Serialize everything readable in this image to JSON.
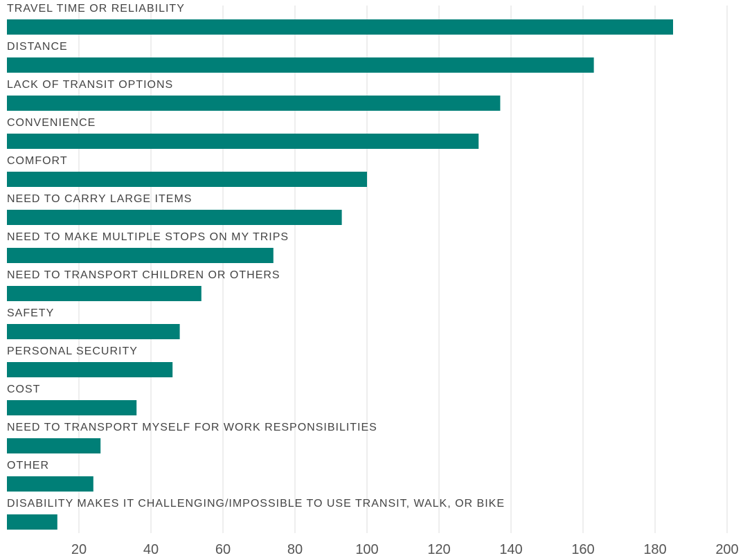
{
  "chart_data": {
    "type": "bar",
    "orientation": "horizontal",
    "title": "",
    "xlabel": "",
    "ylabel": "",
    "categories": [
      "TRAVEL TIME OR RELIABILITY",
      "DISTANCE",
      "LACK OF TRANSIT OPTIONS",
      "CONVENIENCE",
      "COMFORT",
      "NEED TO CARRY LARGE ITEMS",
      "NEED TO MAKE MULTIPLE STOPS ON MY TRIPS",
      "NEED TO TRANSPORT CHILDREN OR OTHERS",
      "SAFETY",
      "PERSONAL SECURITY",
      "COST",
      "NEED TO TRANSPORT MYSELF FOR WORK RESPONSIBILITIES",
      "OTHER",
      "DISABILITY MAKES IT CHALLENGING/IMPOSSIBLE TO USE TRANSIT, WALK, OR BIKE"
    ],
    "values": [
      185,
      163,
      137,
      131,
      100,
      93,
      74,
      54,
      48,
      46,
      36,
      26,
      24,
      14
    ],
    "xlim": [
      0,
      200
    ],
    "xticks": [
      20,
      40,
      60,
      80,
      100,
      120,
      140,
      160,
      180,
      200
    ],
    "grid": "vertical",
    "legend": "none",
    "bar_color": "#007f77"
  }
}
